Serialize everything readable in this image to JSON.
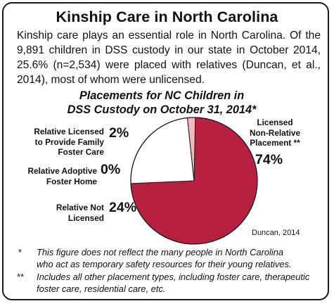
{
  "header": {
    "title": "Kinship Care in North Carolina",
    "intro": "Kinship care plays an essential role in North Carolina. Of the 9,891 children in DSS custody in our state in October 2014, 25.6% (n=2,534) were placed with relatives (Duncan, et al., 2014), most of whom were unlicensed."
  },
  "chart_data": {
    "type": "pie",
    "title_line1": "Placements for NC Children in",
    "title_line2": "DSS Custody on October 31, 2014*",
    "slices": [
      {
        "label_line1": "Licensed",
        "label_line2": "Non-Relative",
        "label_line3": "Placement **",
        "value": 74,
        "display": "74%",
        "color": "#b8203f"
      },
      {
        "label_line1": "Relative Not",
        "label_line2": "Licensed",
        "value": 24,
        "display": "24%",
        "color": "#ffffff"
      },
      {
        "label_line1": "Relative Adoptive",
        "label_line2": "Foster Home",
        "value": 0,
        "display": "0%",
        "color": "#ffffff"
      },
      {
        "label_line1": "Relative Licensed",
        "label_line2": "to Provide Family",
        "label_line3": "Foster Care",
        "value": 2,
        "display": "2%",
        "color": "#f2b8bc"
      }
    ],
    "source": "Duncan, 2014"
  },
  "notes": [
    {
      "mark": "*",
      "line1": "This figure does not reflect the many people in North Carolina",
      "line2": "who act as temporary safety resources for their young relatives."
    },
    {
      "mark": "**",
      "line1": "Includes all other placement types, including foster care, therapeutic",
      "line2": "foster care, residential care, etc."
    }
  ]
}
